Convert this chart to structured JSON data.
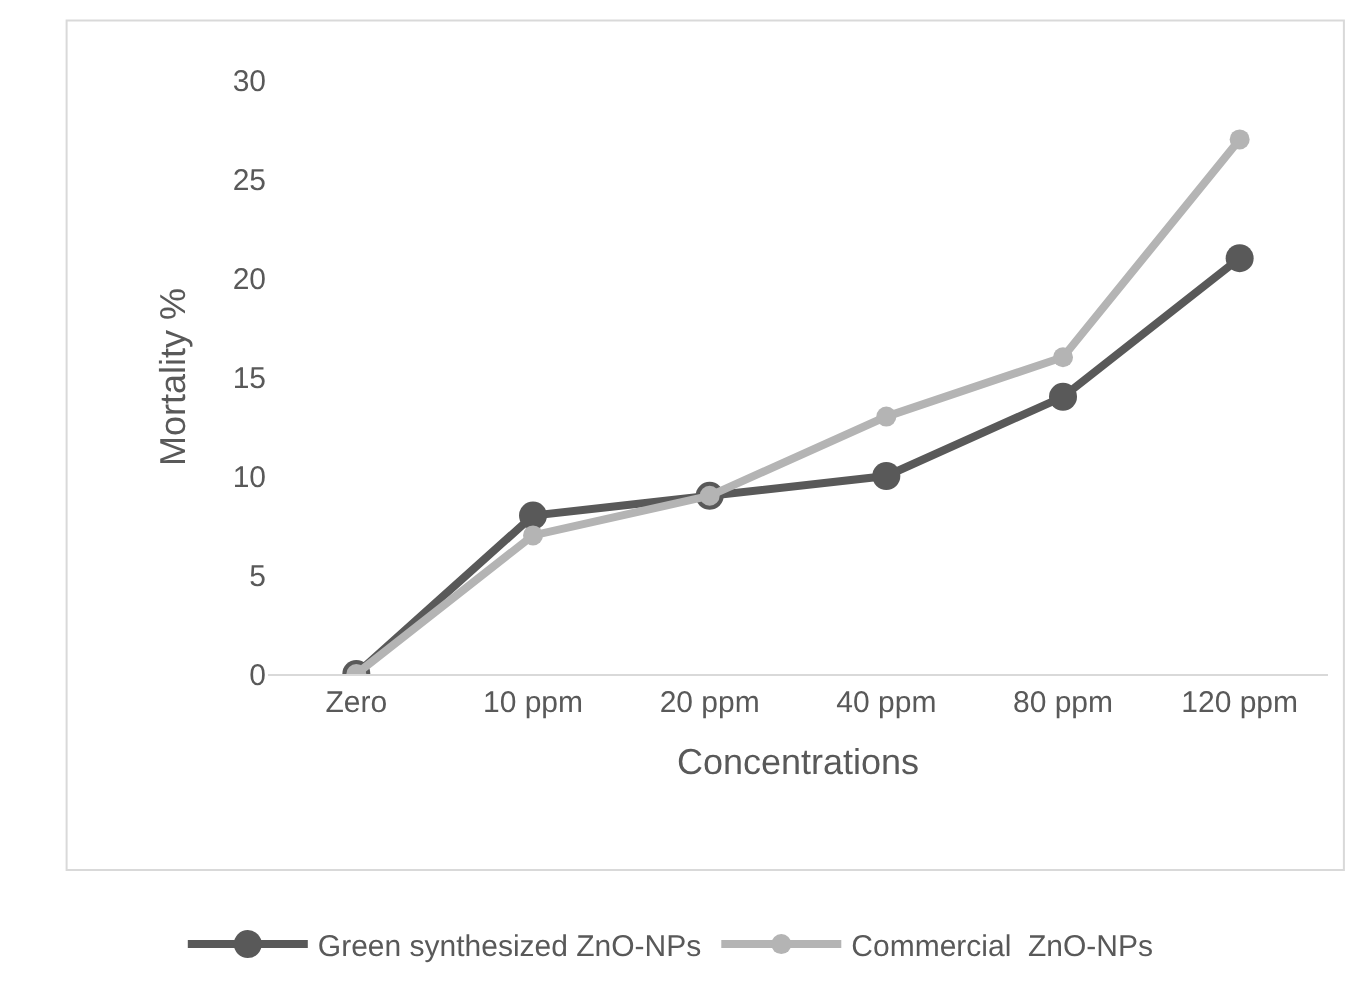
{
  "chart_data": {
    "type": "line",
    "xlabel": "Concentrations",
    "ylabel": "Mortality %",
    "categories": [
      "Zero",
      "10 ppm",
      "20 ppm",
      "40 ppm",
      "80 ppm",
      "120 ppm"
    ],
    "series": [
      {
        "name": "Green synthesized ZnO-NPs",
        "color": "#595959",
        "values": [
          0,
          8,
          9,
          10,
          14,
          21
        ]
      },
      {
        "name": "Commercial  ZnO-NPs",
        "color": "#b4b4b4",
        "values": [
          0,
          7,
          9,
          13,
          16,
          27
        ]
      }
    ],
    "ylim": [
      0,
      30
    ],
    "yticks": [
      0,
      5,
      10,
      15,
      20,
      25,
      30
    ],
    "grid": false,
    "legend": "bottom",
    "marker": "circle",
    "line_style": "solid"
  }
}
